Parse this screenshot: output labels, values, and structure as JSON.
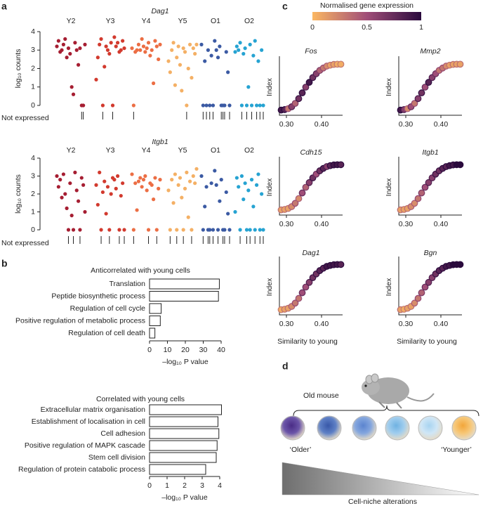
{
  "panel_labels": [
    "a",
    "b",
    "c",
    "d"
  ],
  "chart_data": [
    {
      "type": "strip",
      "title": "Dag1",
      "ylabel": "log₁₀ counts",
      "rug_label": "Not expressed",
      "ylim": [
        0,
        4
      ],
      "yticks": [
        0,
        1,
        2,
        3,
        4
      ],
      "series": [
        {
          "name": "Y2",
          "color": "#a61e32",
          "values": [
            3.2,
            3.5,
            2.9,
            3.0,
            3.3,
            3.6,
            2.6,
            3.1,
            2.8,
            1.0,
            0.6,
            3.4,
            3.0,
            2.2,
            3.1,
            0,
            0,
            3.3
          ]
        },
        {
          "name": "Y3",
          "color": "#d23a2e",
          "values": [
            3.7,
            3.2,
            3.4,
            2.9,
            3.0,
            3.5,
            3.1,
            1.4,
            2.6,
            3.3,
            3.6,
            0,
            2.1,
            3.2,
            3.0,
            2.8,
            3.4,
            0
          ]
        },
        {
          "name": "Y4",
          "color": "#ec6e44",
          "values": [
            3.3,
            3.0,
            3.6,
            3.2,
            2.9,
            3.1,
            3.4,
            2.7,
            3.0,
            1.2,
            3.5,
            3.2,
            2.5,
            3.3,
            3.1,
            0,
            2.9,
            3.0
          ]
        },
        {
          "name": "Y5",
          "color": "#f4b065",
          "values": [
            3.1,
            2.8,
            3.3,
            2.4,
            1.8,
            3.0,
            3.4,
            1.1,
            2.6,
            3.2,
            2.2,
            0.8,
            3.1,
            2.9,
            0,
            2.0,
            3.3,
            1.5
          ]
        },
        {
          "name": "O1",
          "color": "#3b5aa3",
          "values": [
            3.5,
            3.0,
            2.6,
            3.2,
            0,
            0,
            0,
            2.9,
            1.8,
            0,
            3.3,
            0,
            2.4,
            0,
            3.0,
            0,
            2.7,
            0
          ]
        },
        {
          "name": "O2",
          "color": "#26a3d2",
          "values": [
            3.2,
            3.0,
            3.4,
            0,
            2.8,
            3.1,
            0,
            1.0,
            3.3,
            0,
            2.7,
            3.5,
            0,
            2.4,
            0,
            3.0,
            0,
            2.9
          ]
        }
      ]
    },
    {
      "type": "strip",
      "title": "Itgb1",
      "ylabel": "log₁₀ counts",
      "rug_label": "Not expressed",
      "ylim": [
        0,
        4
      ],
      "yticks": [
        0,
        1,
        2,
        3,
        4
      ],
      "series": [
        {
          "name": "Y2",
          "color": "#a61e32",
          "values": [
            3.0,
            2.4,
            2.8,
            1.8,
            3.1,
            2.0,
            1.2,
            0,
            2.6,
            0.8,
            0,
            3.2,
            2.2,
            1.6,
            0,
            2.9,
            2.5,
            1.0
          ]
        },
        {
          "name": "Y3",
          "color": "#d23a2e",
          "values": [
            2.8,
            2.3,
            3.0,
            0,
            1.9,
            2.6,
            0,
            2.5,
            1.4,
            3.2,
            0,
            2.1,
            2.7,
            0.9,
            2.4,
            0,
            2.0,
            2.9
          ]
        },
        {
          "name": "Y4",
          "color": "#ec6e44",
          "values": [
            2.7,
            2.9,
            2.4,
            2.8,
            3.0,
            2.2,
            0,
            2.6,
            2.5,
            1.7,
            2.9,
            0,
            2.3,
            2.8,
            3.1,
            0,
            2.6,
            1.1
          ]
        },
        {
          "name": "Y5",
          "color": "#f4b065",
          "values": [
            3.0,
            2.6,
            3.4,
            2.2,
            0,
            2.8,
            1.5,
            3.1,
            0,
            2.5,
            2.9,
            1.8,
            0,
            2.3,
            3.2,
            0.7,
            2.7,
            0
          ]
        },
        {
          "name": "O1",
          "color": "#3b5aa3",
          "values": [
            3.3,
            2.5,
            0,
            1.6,
            2.8,
            0,
            0,
            2.1,
            0.9,
            0,
            3.0,
            0,
            1.3,
            2.4,
            0,
            0,
            2.6,
            0
          ]
        },
        {
          "name": "O2",
          "color": "#26a3d2",
          "values": [
            2.9,
            2.4,
            0,
            3.0,
            1.7,
            2.6,
            0,
            2.2,
            0,
            2.8,
            1.3,
            0,
            2.5,
            3.1,
            0,
            2.0,
            0,
            1.0
          ]
        }
      ]
    },
    {
      "type": "bar",
      "orientation": "horizontal",
      "title": "Anticorrelated with young cells",
      "categories": [
        "Translation",
        "Peptide biosynthetic process",
        "Regulation of cell cycle",
        "Positive regulation of metabolic process",
        "Regulation of cell death"
      ],
      "values": [
        39,
        38.5,
        6.5,
        6,
        3
      ],
      "color": "#ffffff",
      "edgecolor": "#222222",
      "xlim": [
        0,
        40
      ],
      "xticks": [
        0,
        10,
        20,
        30,
        40
      ],
      "xlabel": "–log₁₀ P value"
    },
    {
      "type": "bar",
      "orientation": "horizontal",
      "title": "Correlated with young cells",
      "categories": [
        "Extracellular matrix organisation",
        "Establishment of localisation in cell",
        "Cell adhesion",
        "Positive regulation of MAPK cascade",
        "Stem cell division",
        "Regulation of protein catabolic process"
      ],
      "values": [
        4.1,
        3.9,
        3.95,
        3.85,
        3.8,
        3.2
      ],
      "color": "#ffffff",
      "edgecolor": "#222222",
      "xlim": [
        0,
        4
      ],
      "xticks": [
        0,
        1,
        2,
        3,
        4
      ],
      "xlabel": "–log₁₀ P value"
    },
    {
      "type": "colorbar",
      "title": "Normalised gene expression",
      "lim": [
        0,
        1
      ],
      "ticks": [
        0,
        0.5,
        1
      ],
      "colors": [
        "#fbb762",
        "#a04e78",
        "#2a0a3d"
      ]
    },
    {
      "type": "scatter",
      "title": "Fos",
      "ylabel": "Index",
      "xlim": [
        0.28,
        0.46
      ],
      "ylim": [
        0,
        1
      ],
      "xticks": [
        {
          "value": 0.3,
          "label": "0.30"
        },
        {
          "value": 0.4,
          "label": "0.40"
        }
      ],
      "x": [
        0.285,
        0.295,
        0.305,
        0.315,
        0.325,
        0.335,
        0.345,
        0.355,
        0.365,
        0.375,
        0.385,
        0.395,
        0.405,
        0.415,
        0.425,
        0.435,
        0.445,
        0.455
      ],
      "y": [
        0.02,
        0.03,
        0.05,
        0.09,
        0.16,
        0.26,
        0.38,
        0.5,
        0.6,
        0.7,
        0.78,
        0.85,
        0.9,
        0.94,
        0.96,
        0.975,
        0.98,
        0.98
      ],
      "color_values": [
        0.9,
        0.8,
        0.3,
        0.6,
        0.4,
        0.7,
        0.8,
        0.6,
        0.9,
        0.7,
        0.6,
        0.4,
        0.3,
        0.2,
        0.1,
        0.1,
        0.05,
        0.05
      ]
    },
    {
      "type": "scatter",
      "title": "Mmp2",
      "ylabel": "Index",
      "xlim": [
        0.28,
        0.46
      ],
      "ylim": [
        0,
        1
      ],
      "xticks": [
        {
          "value": 0.3,
          "label": "0.30"
        },
        {
          "value": 0.4,
          "label": "0.40"
        }
      ],
      "x": [
        0.285,
        0.295,
        0.305,
        0.315,
        0.325,
        0.335,
        0.345,
        0.355,
        0.365,
        0.375,
        0.385,
        0.395,
        0.405,
        0.415,
        0.425,
        0.435,
        0.445,
        0.455
      ],
      "y": [
        0.02,
        0.03,
        0.05,
        0.09,
        0.16,
        0.26,
        0.38,
        0.5,
        0.6,
        0.7,
        0.78,
        0.85,
        0.9,
        0.94,
        0.96,
        0.975,
        0.98,
        0.98
      ],
      "color_values": [
        0.9,
        0.6,
        0.2,
        0.5,
        0.3,
        0.6,
        0.7,
        0.5,
        0.8,
        0.6,
        0.5,
        0.3,
        0.3,
        0.2,
        0.1,
        0.1,
        0.1,
        0.1
      ]
    },
    {
      "type": "scatter",
      "title": "Cdh15",
      "ylabel": "Index",
      "xlim": [
        0.28,
        0.46
      ],
      "ylim": [
        0,
        1
      ],
      "xticks": [
        {
          "value": 0.3,
          "label": "0.30"
        },
        {
          "value": 0.4,
          "label": "0.40"
        }
      ],
      "x": [
        0.285,
        0.295,
        0.305,
        0.315,
        0.325,
        0.335,
        0.345,
        0.355,
        0.365,
        0.375,
        0.385,
        0.395,
        0.405,
        0.415,
        0.425,
        0.435,
        0.445,
        0.455
      ],
      "y": [
        0.02,
        0.03,
        0.05,
        0.09,
        0.16,
        0.26,
        0.38,
        0.5,
        0.6,
        0.7,
        0.78,
        0.85,
        0.9,
        0.94,
        0.96,
        0.975,
        0.98,
        0.98
      ],
      "color_values": [
        0.1,
        0.1,
        0.1,
        0.2,
        0.3,
        0.2,
        0.5,
        0.4,
        0.6,
        0.7,
        0.5,
        0.7,
        0.8,
        0.6,
        0.8,
        0.9,
        0.9,
        0.8
      ]
    },
    {
      "type": "scatter",
      "title": "Itgb1",
      "ylabel": "Index",
      "xlim": [
        0.28,
        0.46
      ],
      "ylim": [
        0,
        1
      ],
      "xticks": [
        {
          "value": 0.3,
          "label": "0.30"
        },
        {
          "value": 0.4,
          "label": "0.40"
        }
      ],
      "x": [
        0.285,
        0.295,
        0.305,
        0.315,
        0.325,
        0.335,
        0.345,
        0.355,
        0.365,
        0.375,
        0.385,
        0.395,
        0.405,
        0.415,
        0.425,
        0.435,
        0.445,
        0.455
      ],
      "y": [
        0.02,
        0.03,
        0.05,
        0.09,
        0.16,
        0.26,
        0.38,
        0.5,
        0.6,
        0.7,
        0.78,
        0.85,
        0.9,
        0.94,
        0.96,
        0.975,
        0.98,
        0.98
      ],
      "color_values": [
        0.1,
        0.1,
        0.1,
        0.2,
        0.2,
        0.3,
        0.4,
        0.5,
        0.6,
        0.6,
        0.7,
        0.7,
        0.8,
        0.8,
        0.9,
        0.9,
        1,
        1
      ]
    },
    {
      "type": "scatter",
      "title": "Dag1",
      "ylabel": "Index",
      "xlabel": "Similarity to young",
      "xlim": [
        0.28,
        0.46
      ],
      "ylim": [
        0,
        1
      ],
      "xticks": [
        {
          "value": 0.3,
          "label": "0.30"
        },
        {
          "value": 0.4,
          "label": "0.40"
        }
      ],
      "x": [
        0.285,
        0.295,
        0.305,
        0.315,
        0.325,
        0.335,
        0.345,
        0.355,
        0.365,
        0.375,
        0.385,
        0.395,
        0.405,
        0.415,
        0.425,
        0.435,
        0.445,
        0.455
      ],
      "y": [
        0.02,
        0.03,
        0.05,
        0.09,
        0.16,
        0.26,
        0.38,
        0.5,
        0.6,
        0.7,
        0.78,
        0.85,
        0.9,
        0.94,
        0.96,
        0.975,
        0.98,
        0.98
      ],
      "color_values": [
        0.05,
        0.1,
        0.1,
        0.2,
        0.3,
        0.3,
        0.5,
        0.5,
        0.6,
        0.7,
        0.7,
        0.8,
        0.8,
        0.9,
        0.9,
        0.9,
        0.9,
        0.8
      ]
    },
    {
      "type": "scatter",
      "title": "Bgn",
      "ylabel": "Index",
      "xlabel": "Similarity to young",
      "xlim": [
        0.28,
        0.46
      ],
      "ylim": [
        0,
        1
      ],
      "xticks": [
        {
          "value": 0.3,
          "label": "0.30"
        },
        {
          "value": 0.4,
          "label": "0.40"
        }
      ],
      "x": [
        0.285,
        0.295,
        0.305,
        0.315,
        0.325,
        0.335,
        0.345,
        0.355,
        0.365,
        0.375,
        0.385,
        0.395,
        0.405,
        0.415,
        0.425,
        0.435,
        0.445,
        0.455
      ],
      "y": [
        0.02,
        0.03,
        0.05,
        0.09,
        0.16,
        0.26,
        0.38,
        0.5,
        0.6,
        0.7,
        0.78,
        0.85,
        0.9,
        0.94,
        0.96,
        0.975,
        0.98,
        0.98
      ],
      "color_values": [
        0.1,
        0.05,
        0.1,
        0.1,
        0.2,
        0.3,
        0.4,
        0.5,
        0.6,
        0.6,
        0.7,
        0.8,
        0.8,
        0.9,
        0.9,
        1,
        1,
        1
      ]
    }
  ],
  "diagram": {
    "mouse_label": "Old mouse",
    "left_label": "‘Older’",
    "right_label": "‘Younger’",
    "gradient_label": "Cell-niche alterations"
  }
}
